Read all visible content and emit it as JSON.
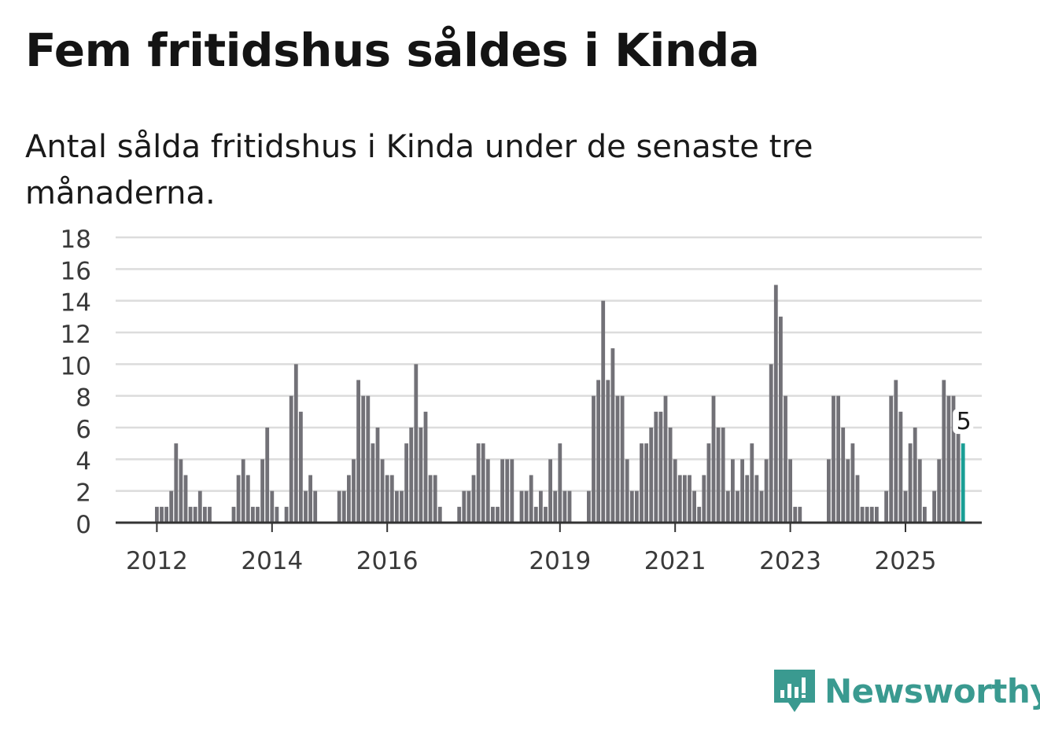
{
  "title": "Fem fritidshus såldes i Kinda",
  "subtitle": "Antal sålda fritidshus i Kinda under de senaste tre månaderna.",
  "brand": {
    "name": "Newsworthy",
    "icon": "newsworthy-logo-icon",
    "color": "#3a9a90"
  },
  "colors": {
    "bar": "#727177",
    "highlight": "#1a9e95",
    "grid": "#dcdcdc",
    "axis": "#333333"
  },
  "chart_data": {
    "type": "bar",
    "title": "Fem fritidshus såldes i Kinda",
    "xlabel": "",
    "ylabel": "",
    "ylim": [
      0,
      18
    ],
    "yticks": [
      0,
      2,
      4,
      6,
      8,
      10,
      12,
      14,
      16,
      18
    ],
    "x_start": "2012-01",
    "interval": "month",
    "xtick_labels": [
      {
        "label": "2012",
        "index": 0
      },
      {
        "label": "2014",
        "index": 24
      },
      {
        "label": "2016",
        "index": 48
      },
      {
        "label": "2019",
        "index": 84
      },
      {
        "label": "2021",
        "index": 108
      },
      {
        "label": "2023",
        "index": 132
      },
      {
        "label": "2025",
        "index": 156
      }
    ],
    "values": [
      1,
      1,
      1,
      2,
      5,
      4,
      3,
      1,
      1,
      2,
      1,
      1,
      0,
      0,
      0,
      0,
      1,
      3,
      4,
      3,
      1,
      1,
      4,
      6,
      2,
      1,
      0,
      1,
      8,
      10,
      7,
      2,
      3,
      2,
      0,
      0,
      0,
      0,
      2,
      2,
      3,
      4,
      9,
      8,
      8,
      5,
      6,
      4,
      3,
      3,
      2,
      2,
      5,
      6,
      10,
      6,
      7,
      3,
      3,
      1,
      0,
      0,
      0,
      1,
      2,
      2,
      3,
      5,
      5,
      4,
      1,
      1,
      4,
      4,
      4,
      0,
      2,
      2,
      3,
      1,
      2,
      1,
      4,
      2,
      5,
      2,
      2,
      0,
      0,
      0,
      2,
      8,
      9,
      14,
      9,
      11,
      8,
      8,
      4,
      2,
      2,
      5,
      5,
      6,
      7,
      7,
      8,
      6,
      4,
      3,
      3,
      3,
      2,
      1,
      3,
      5,
      8,
      6,
      6,
      2,
      4,
      2,
      4,
      3,
      5,
      3,
      2,
      4,
      10,
      15,
      13,
      8,
      4,
      1,
      1,
      0,
      0,
      0,
      0,
      0,
      4,
      8,
      8,
      6,
      4,
      5,
      3,
      1,
      1,
      1,
      1,
      0,
      2,
      8,
      9,
      7,
      2,
      5,
      6,
      4,
      1,
      0,
      2,
      4,
      9,
      8,
      8,
      6,
      5
    ],
    "highlight_index": 168,
    "annotations": [
      {
        "index": 168,
        "text": "5"
      }
    ]
  }
}
